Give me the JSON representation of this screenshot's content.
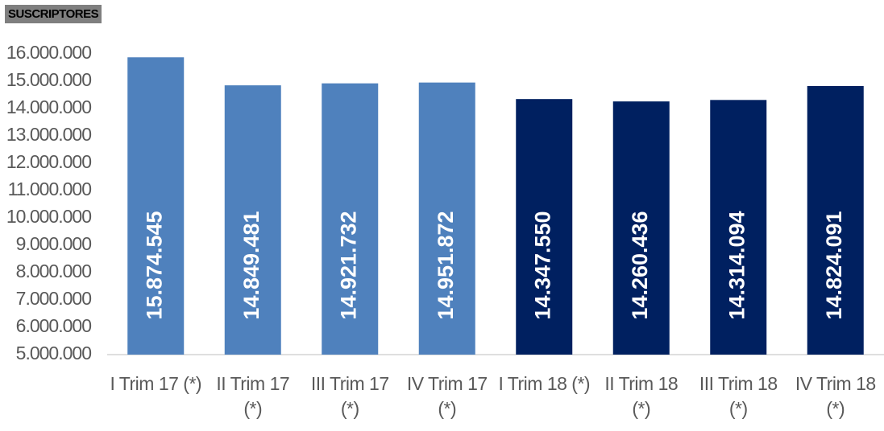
{
  "chart_data": {
    "type": "bar",
    "title": "SUSCRIPTORES",
    "categories": [
      "I Trim 17 (*)",
      "II Trim 17 (*)",
      "III Trim 17 (*)",
      "IV Trim 17 (*)",
      "I Trim 18 (*)",
      "II Trim 18 (*)",
      "III Trim 18 (*)",
      "IV Trim 18 (*)"
    ],
    "values": [
      15874545,
      14849481,
      14921732,
      14951872,
      14347550,
      14260436,
      14314094,
      14824091
    ],
    "value_labels": [
      "15.874.545",
      "14.849.481",
      "14.921.732",
      "14.951.872",
      "14.347.550",
      "14.260.436",
      "14.314.094",
      "14.824.091"
    ],
    "colors": [
      "#4f81bd",
      "#4f81bd",
      "#4f81bd",
      "#4f81bd",
      "#002060",
      "#002060",
      "#002060",
      "#002060"
    ],
    "ylim": [
      5000000,
      16000000
    ],
    "yticks": [
      {
        "value": 5000000,
        "label": "5.000.000"
      },
      {
        "value": 6000000,
        "label": "6.000.000"
      },
      {
        "value": 7000000,
        "label": "7.000.000"
      },
      {
        "value": 8000000,
        "label": "8.000.000"
      },
      {
        "value": 9000000,
        "label": "9.000.000"
      },
      {
        "value": 10000000,
        "label": "10.000.000"
      },
      {
        "value": 11000000,
        "label": "11.000.000"
      },
      {
        "value": 12000000,
        "label": "12.000.000"
      },
      {
        "value": 13000000,
        "label": "13.000.000"
      },
      {
        "value": 14000000,
        "label": "14.000.000"
      },
      {
        "value": 15000000,
        "label": "15.000.000"
      },
      {
        "value": 16000000,
        "label": "16.000.000"
      }
    ],
    "grid": false
  }
}
